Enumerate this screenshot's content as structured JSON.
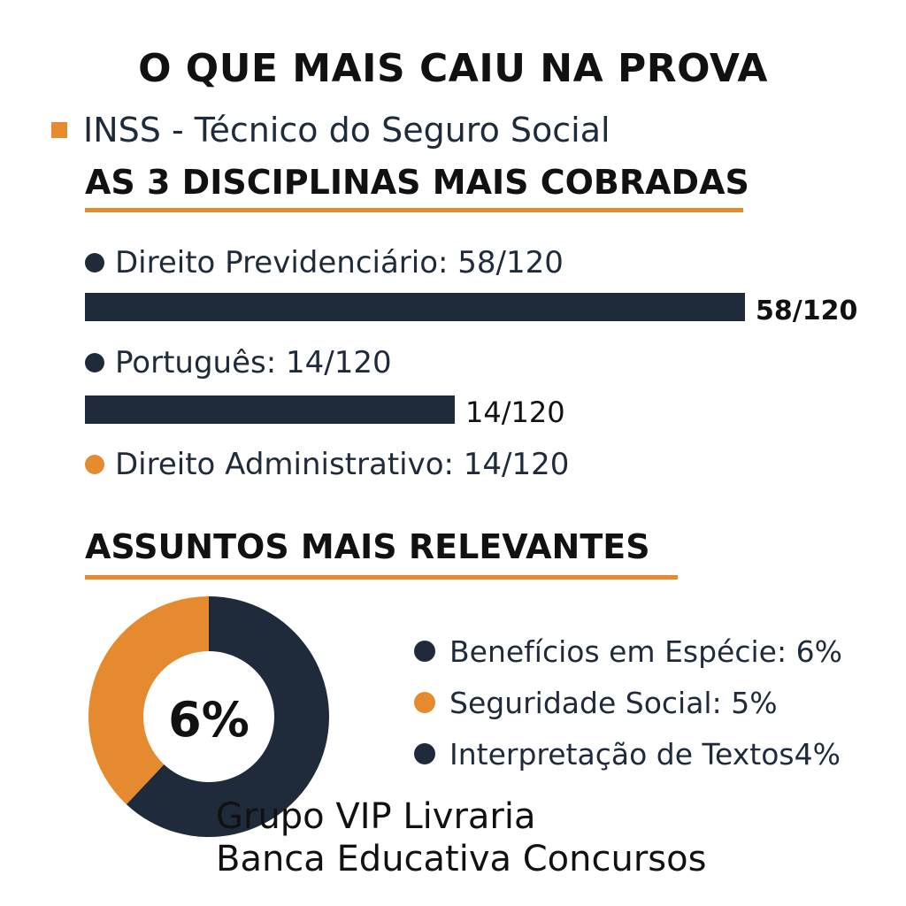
{
  "title": "O QUE MAIS CAIU NA PROVA",
  "subtitle": "INSS - Técnico do Seguro Social",
  "section1_title": "AS 3 DISCIPLINAS MAIS COBRADAS",
  "section2_title": "ASSUNTOS MAIS RELEVANTES",
  "colors": {
    "navy": "#1f2a3a",
    "orange": "#e58a2e",
    "text": "#111111"
  },
  "disciplines": [
    {
      "label": "Direito Previdenciário: 58/120",
      "dot_color": "navy"
    },
    {
      "label": "Português: 14/120",
      "dot_color": "navy"
    },
    {
      "label": "Direito Administrativo: 14/120",
      "dot_color": "orange"
    }
  ],
  "topics": [
    {
      "label": "Benefícios em Espécie: 6%",
      "dot_color": "navy"
    },
    {
      "label": "Seguridade Social: 5%",
      "dot_color": "orange"
    },
    {
      "label": "Interpretação de Textos4%",
      "dot_color": "navy"
    }
  ],
  "footer": {
    "line1": "Grupo VIP Livraria",
    "line2": "Banca Educativa Concursos"
  },
  "chart_data": [
    {
      "type": "bar",
      "categories": [
        "Direito Previdenciário",
        "Português"
      ],
      "values": [
        58,
        14
      ],
      "max": 120,
      "data_labels": [
        "58/120",
        "14/120"
      ]
    },
    {
      "type": "pie",
      "center_label": "6%",
      "slices": [
        {
          "value": 0.62,
          "color": "navy"
        },
        {
          "value": 0.38,
          "color": "orange"
        }
      ]
    }
  ]
}
